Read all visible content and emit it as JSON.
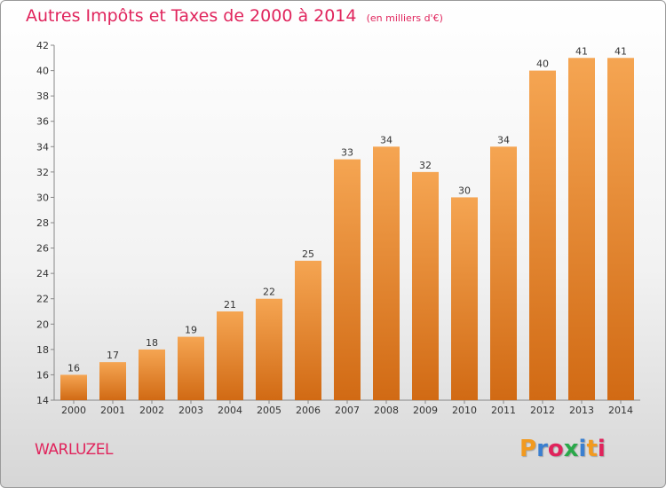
{
  "chart_data": {
    "type": "bar",
    "title": "Autres Impôts et Taxes de 2000 à 2014",
    "subtitle": "(en milliers d'€)",
    "categories": [
      "2000",
      "2001",
      "2002",
      "2003",
      "2004",
      "2005",
      "2006",
      "2007",
      "2008",
      "2009",
      "2010",
      "2011",
      "2012",
      "2013",
      "2014"
    ],
    "values": [
      16,
      17,
      18,
      19,
      21,
      22,
      25,
      33,
      34,
      32,
      30,
      34,
      40,
      41,
      41
    ],
    "ylim": [
      14,
      42
    ],
    "yticks": [
      14,
      16,
      18,
      20,
      22,
      24,
      26,
      28,
      30,
      32,
      34,
      36,
      38,
      40,
      42
    ],
    "grid": false,
    "bar_color": "#f39a3d",
    "bar_color_dark": "#d9731f"
  },
  "commune": "WARLUZEL",
  "logo": {
    "letters": [
      "P",
      "r",
      "o",
      "x",
      "i",
      "t",
      "i"
    ],
    "colors": [
      "#f29a1f",
      "#3a7fd0",
      "#e0245c",
      "#2aa84a",
      "#3a7fd0",
      "#f29a1f",
      "#e0245c"
    ]
  }
}
